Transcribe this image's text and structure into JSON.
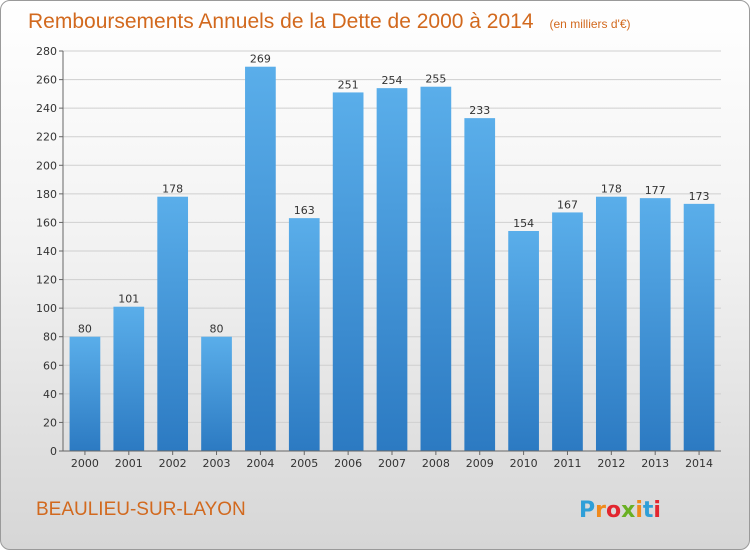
{
  "chart_data": {
    "type": "bar",
    "title": "Remboursements Annuels de la Dette de 2000 à 2014",
    "unit": "(en milliers d'€)",
    "categories": [
      "2000",
      "2001",
      "2002",
      "2003",
      "2004",
      "2005",
      "2006",
      "2007",
      "2008",
      "2009",
      "2010",
      "2011",
      "2012",
      "2013",
      "2014"
    ],
    "values": [
      80,
      101,
      178,
      80,
      269,
      163,
      251,
      254,
      255,
      233,
      154,
      167,
      178,
      177,
      173
    ],
    "ylim": [
      0,
      280
    ],
    "yticks": [
      0,
      20,
      40,
      60,
      80,
      100,
      120,
      140,
      160,
      180,
      200,
      220,
      240,
      260,
      280
    ],
    "grid": true,
    "bar_color": "#3a8fd8",
    "title_color": "#d2691e"
  },
  "footer": {
    "city": "BEAULIEU-SUR-LAYON",
    "logo_letters": [
      "P",
      "r",
      "o",
      "x",
      "i",
      "t",
      "i"
    ],
    "logo_colors": [
      "#2f9fd8",
      "#f08a1c",
      "#e2262f",
      "#6ab023",
      "#f08a1c",
      "#2f9fd8",
      "#e2262f"
    ]
  }
}
